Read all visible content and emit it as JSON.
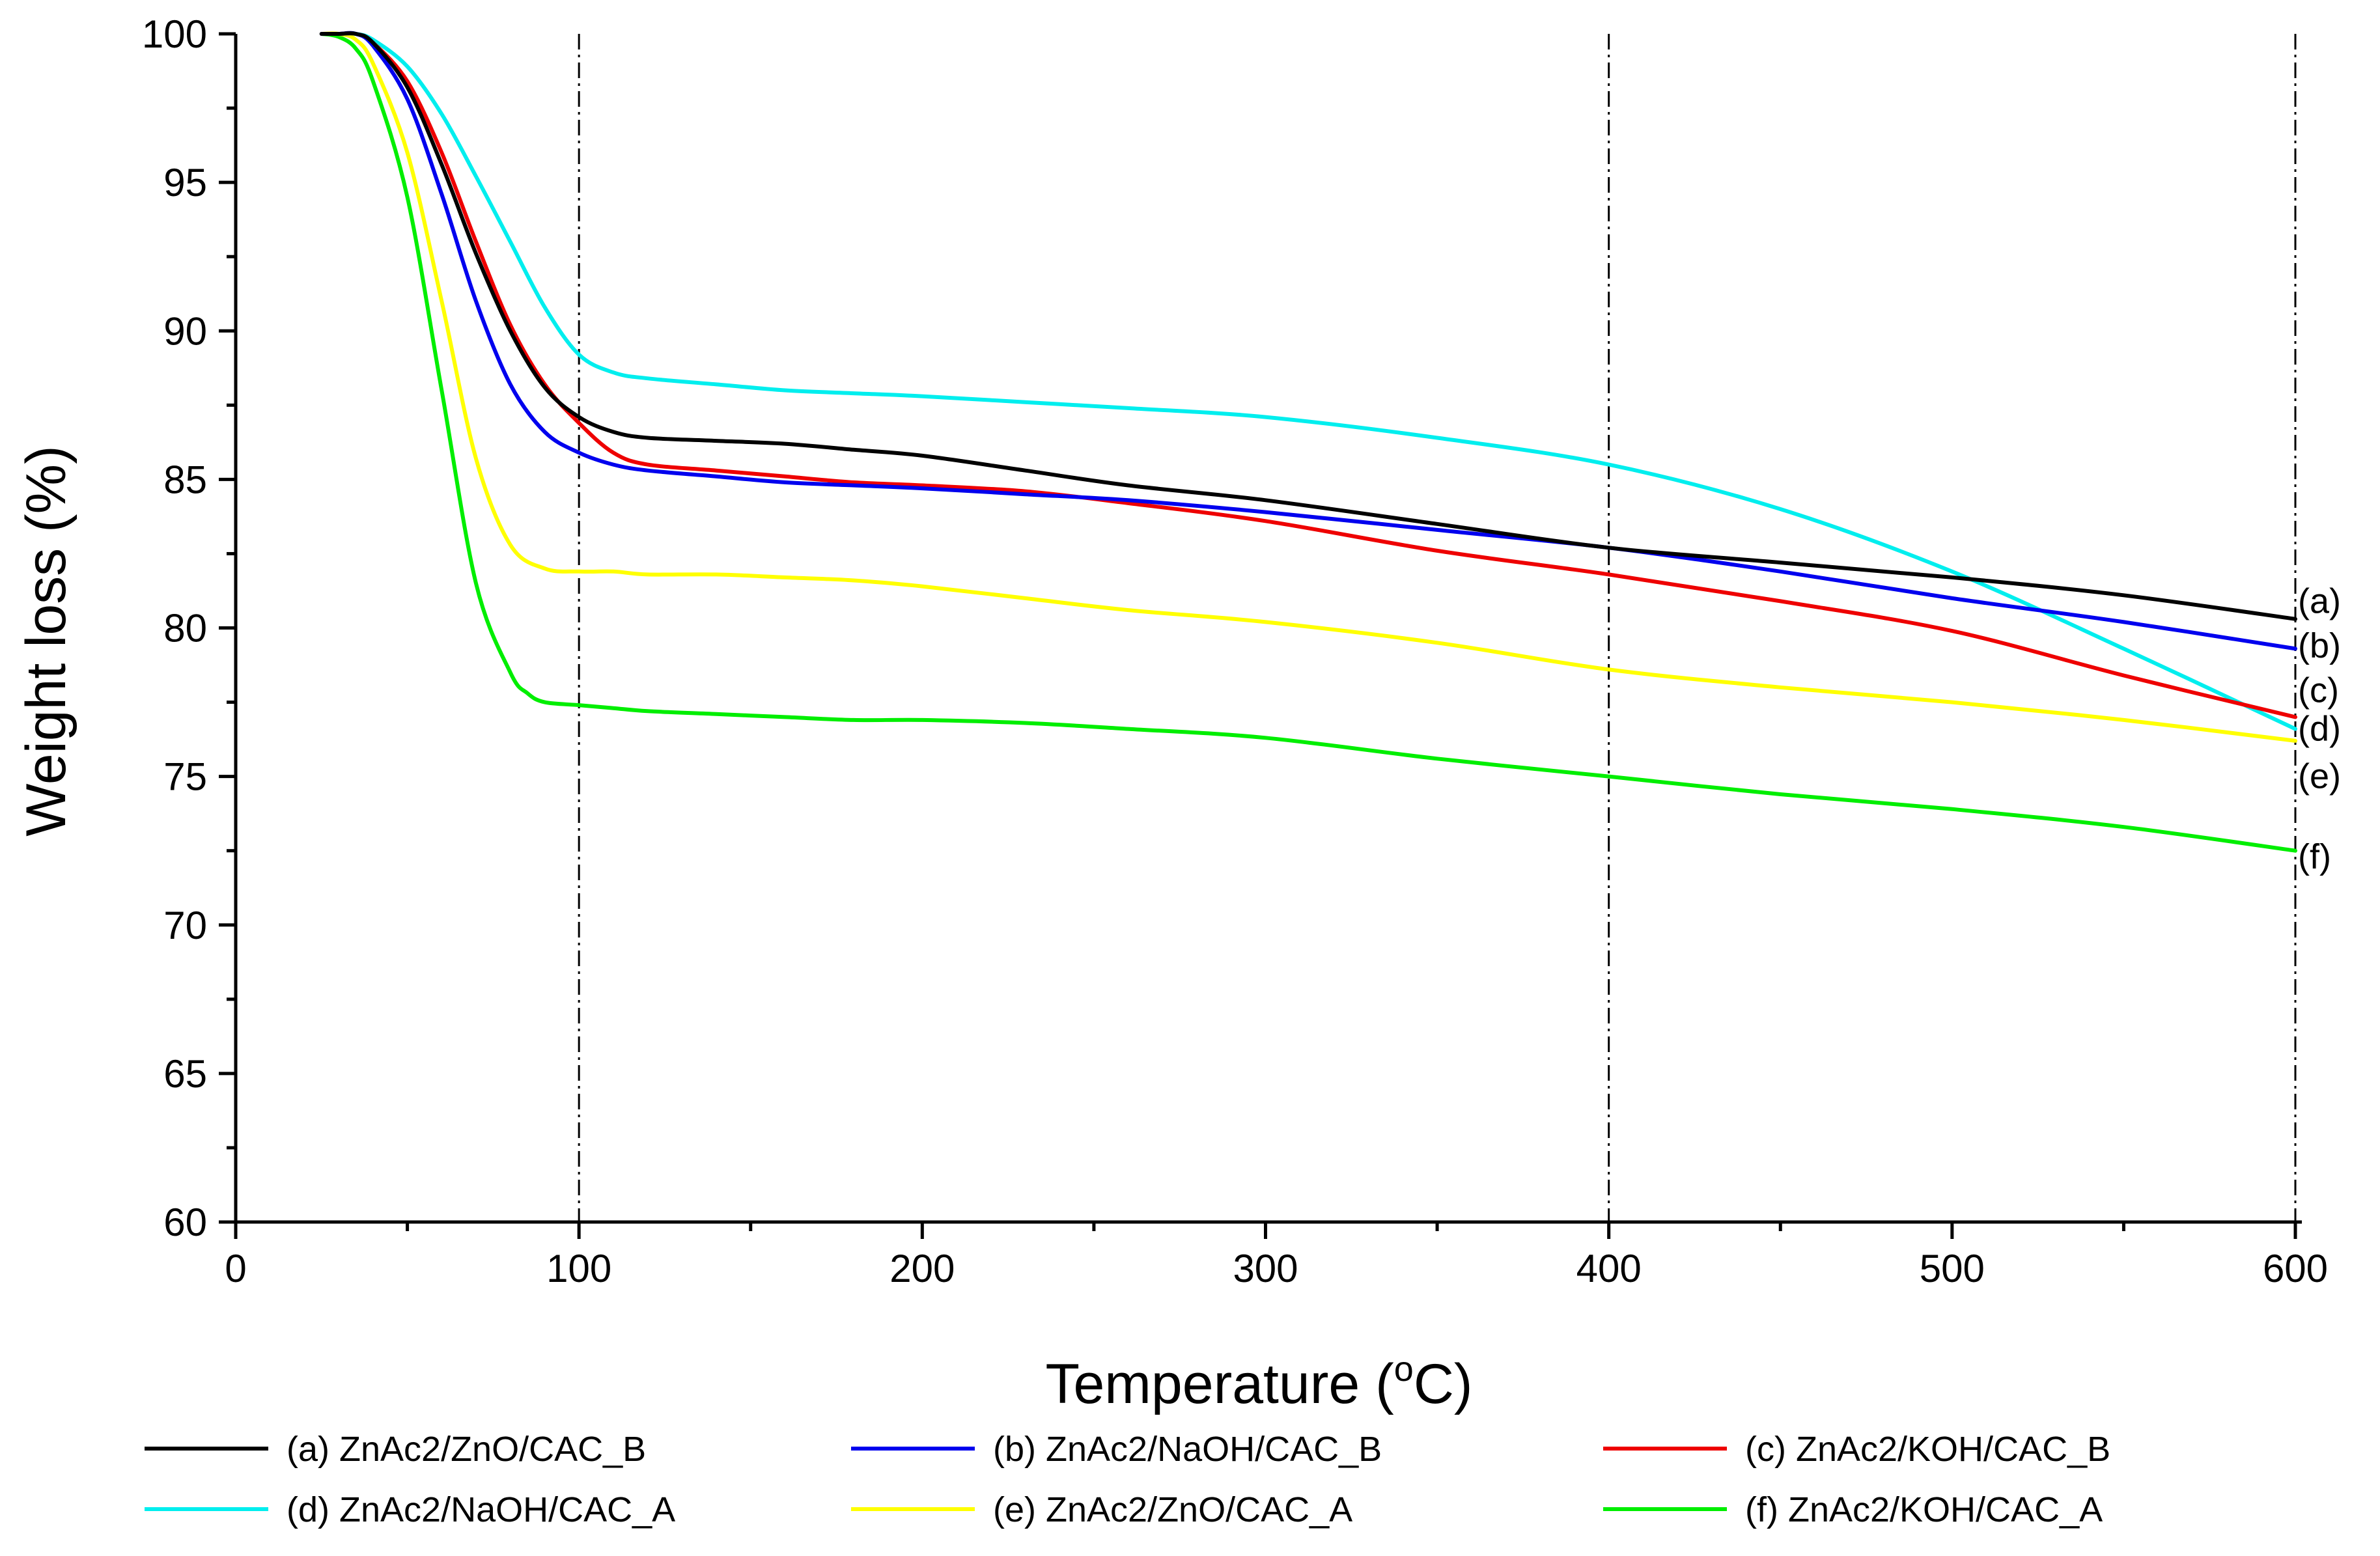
{
  "chart_data": {
    "type": "line",
    "title": "",
    "xlabel": "Temperature (",
    "xlabel_sup": "o",
    "xlabel_unit": "C)",
    "ylabel": "Weight loss (%)",
    "xlim": [
      0,
      600
    ],
    "ylim": [
      60,
      100
    ],
    "xticks": [
      0,
      100,
      200,
      300,
      400,
      500,
      600
    ],
    "yticks": [
      60,
      65,
      70,
      75,
      80,
      85,
      90,
      95,
      100
    ],
    "reference_lines_x": [
      100,
      400,
      600
    ],
    "grid": false,
    "legend_position": "bottom",
    "series": [
      {
        "id": "a",
        "name": "(a) ZnAc2/ZnO/CAC_B",
        "end_label": "(a)",
        "color": "#000000",
        "x": [
          25,
          30,
          35,
          40,
          50,
          60,
          70,
          80,
          90,
          100,
          110,
          120,
          140,
          160,
          180,
          200,
          230,
          260,
          300,
          350,
          400,
          450,
          500,
          550,
          600
        ],
        "y": [
          100,
          100,
          100,
          99.7,
          98.2,
          95.6,
          92.6,
          90.0,
          88.1,
          87.1,
          86.6,
          86.4,
          86.3,
          86.2,
          86.0,
          85.8,
          85.3,
          84.8,
          84.3,
          83.5,
          82.7,
          82.2,
          81.7,
          81.1,
          80.3
        ]
      },
      {
        "id": "b",
        "name": "(b) ZnAc2/NaOH/CAC_B",
        "end_label": "(b)",
        "color": "#0000ee",
        "x": [
          25,
          30,
          35,
          40,
          50,
          60,
          70,
          80,
          90,
          100,
          110,
          120,
          140,
          160,
          180,
          200,
          230,
          260,
          300,
          350,
          400,
          450,
          500,
          550,
          600
        ],
        "y": [
          100,
          100,
          100,
          99.6,
          97.8,
          94.6,
          91.0,
          88.2,
          86.6,
          85.9,
          85.5,
          85.3,
          85.1,
          84.9,
          84.8,
          84.7,
          84.5,
          84.3,
          83.9,
          83.3,
          82.7,
          81.9,
          81.0,
          80.2,
          79.3
        ]
      },
      {
        "id": "c",
        "name": "(c) ZnAc2/KOH/CAC_B",
        "end_label": "(c)",
        "color": "#ee0000",
        "x": [
          25,
          30,
          35,
          40,
          50,
          60,
          70,
          80,
          90,
          100,
          110,
          120,
          140,
          160,
          180,
          200,
          230,
          260,
          300,
          350,
          400,
          450,
          500,
          550,
          600
        ],
        "y": [
          100,
          100,
          100,
          99.7,
          98.4,
          96.0,
          93.0,
          90.2,
          88.2,
          86.9,
          85.9,
          85.5,
          85.3,
          85.1,
          84.9,
          84.8,
          84.6,
          84.2,
          83.6,
          82.6,
          81.8,
          80.9,
          79.9,
          78.4,
          77.0
        ]
      },
      {
        "id": "d",
        "name": "(d) ZnAc2/NaOH/CAC_A",
        "end_label": "(d)",
        "color": "#00eeee",
        "x": [
          25,
          30,
          35,
          40,
          50,
          60,
          70,
          80,
          90,
          100,
          110,
          120,
          140,
          160,
          180,
          200,
          230,
          260,
          300,
          350,
          400,
          450,
          500,
          550,
          600
        ],
        "y": [
          100,
          100,
          100,
          99.8,
          98.9,
          97.3,
          95.2,
          93.0,
          90.8,
          89.2,
          88.6,
          88.4,
          88.2,
          88.0,
          87.9,
          87.8,
          87.6,
          87.4,
          87.1,
          86.4,
          85.5,
          84.0,
          81.9,
          79.3,
          76.6
        ]
      },
      {
        "id": "e",
        "name": "(e) ZnAc2/ZnO/CAC_A",
        "end_label": "(e)",
        "color": "#ffff00",
        "x": [
          25,
          30,
          35,
          40,
          50,
          60,
          70,
          80,
          90,
          100,
          110,
          120,
          140,
          160,
          180,
          200,
          230,
          260,
          300,
          350,
          400,
          450,
          500,
          550,
          600
        ],
        "y": [
          100,
          100,
          99.8,
          99.0,
          96.0,
          91.0,
          85.7,
          82.8,
          82.0,
          81.9,
          81.9,
          81.8,
          81.8,
          81.7,
          81.6,
          81.4,
          81.0,
          80.6,
          80.2,
          79.5,
          78.6,
          78.0,
          77.5,
          76.9,
          76.2
        ]
      },
      {
        "id": "f",
        "name": "(f) ZnAc2/KOH/CAC_A",
        "end_label": "(f)",
        "color": "#00ee00",
        "x": [
          25,
          30,
          35,
          40,
          50,
          60,
          70,
          80,
          85,
          90,
          100,
          110,
          120,
          140,
          160,
          180,
          200,
          230,
          260,
          300,
          350,
          400,
          450,
          500,
          550,
          600
        ],
        "y": [
          100,
          99.9,
          99.5,
          98.4,
          94.5,
          88.0,
          81.5,
          78.5,
          77.8,
          77.5,
          77.4,
          77.3,
          77.2,
          77.1,
          77.0,
          76.9,
          76.9,
          76.8,
          76.6,
          76.3,
          75.6,
          75.0,
          74.4,
          73.9,
          73.3,
          72.5
        ]
      }
    ]
  }
}
